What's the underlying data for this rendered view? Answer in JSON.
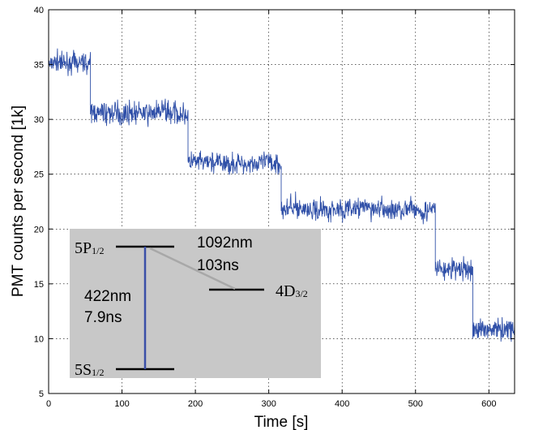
{
  "chart_data": {
    "type": "line",
    "title": "",
    "xlabel": "Time [s]",
    "ylabel": "PMT counts per second  [1k]",
    "xlim": [
      0,
      635
    ],
    "ylim": [
      5,
      40
    ],
    "grid": true,
    "x_ticks": [
      "0",
      "100",
      "200",
      "300",
      "400",
      "500",
      "600"
    ],
    "y_ticks": [
      "5",
      "10",
      "15",
      "20",
      "25",
      "30",
      "35",
      "40"
    ],
    "line_color": "#3050a8",
    "series": [
      {
        "name": "",
        "segments": [
          {
            "x_start": 0,
            "x_end": 57,
            "mean": 35.0
          },
          {
            "x_start": 57,
            "x_end": 190,
            "mean": 30.6
          },
          {
            "x_start": 190,
            "x_end": 317,
            "mean": 26.0
          },
          {
            "x_start": 317,
            "x_end": 527,
            "mean": 21.8
          },
          {
            "x_start": 527,
            "x_end": 578,
            "mean": 16.3
          },
          {
            "x_start": 578,
            "x_end": 635,
            "mean": 10.9
          }
        ]
      }
    ],
    "inset": {
      "background": "#c8c8c8",
      "levels": {
        "p": {
          "main": "5P",
          "sub": "1/2"
        },
        "s": {
          "main": "5S",
          "sub": "1/2"
        },
        "d": {
          "main": "4D",
          "sub": "3/2"
        }
      },
      "transition_blue": {
        "wavelength": "422nm",
        "lifetime": "7.9ns",
        "color": "#3a4fa8"
      },
      "transition_gray": {
        "wavelength": "1092nm",
        "lifetime": "103ns"
      }
    }
  }
}
